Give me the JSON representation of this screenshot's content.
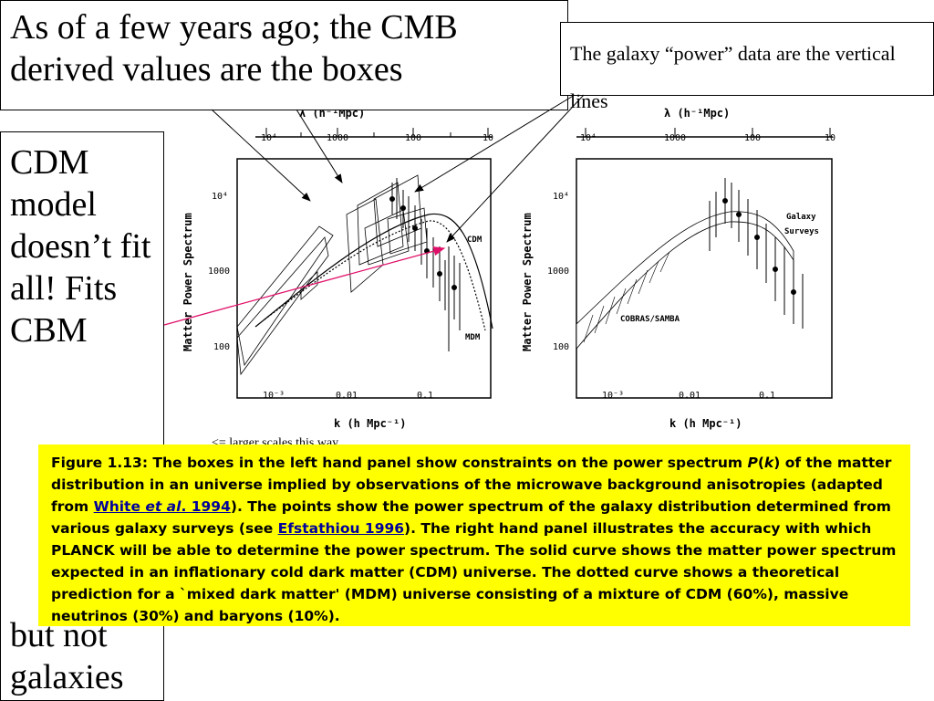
{
  "title_box": {
    "text": "As of a few years ago; the CMB derived values are the boxes"
  },
  "note_box": {
    "text": "The galaxy “power” data are the vertical lines"
  },
  "side_box": {
    "text": "CDM model doesn’t fit all! Fits CBM",
    "bottom_text": "but not galaxies"
  },
  "scale_note": "<= larger scales this way",
  "figure": {
    "left_panel": {
      "top_axis_label": "λ (h⁻¹Mpc)",
      "top_ticks": [
        "10⁴",
        "1000",
        "100",
        "10"
      ],
      "y_label": "Matter Power Spectrum",
      "y_ticks": [
        "10⁴",
        "1000",
        "100"
      ],
      "x_label": "k (h Mpc⁻¹)",
      "x_ticks": [
        "10⁻³",
        "0.01",
        "0.1"
      ],
      "curve_labels": [
        "CDM",
        "MDM"
      ]
    },
    "right_panel": {
      "top_axis_label": "λ (h⁻¹Mpc)",
      "top_ticks": [
        "10⁴",
        "1000",
        "100",
        "10"
      ],
      "y_label": "Matter Power Spectrum",
      "y_ticks": [
        "10⁴",
        "1000",
        "100"
      ],
      "x_label": "k (h Mpc⁻¹)",
      "x_ticks": [
        "10⁻³",
        "0.01",
        "0.1"
      ],
      "annotations": [
        "Galaxy",
        "Surveys",
        "COBRAS/SAMBA"
      ]
    }
  },
  "caption": {
    "part1": "Figure 1.13: The boxes in the left hand panel show constraints on the power spectrum ",
    "p_italic": "P",
    "paren_open": "(",
    "k_italic": "k",
    "part2": ") of the matter distribution in an  universe implied by observations of the microwave background anisotropies (adapted from ",
    "link1_text": "White ",
    "link1_italic": "et al",
    "link1_rest": ". 1994",
    "part3": "). The points show the power spectrum of the galaxy distribution determined from various galaxy surveys (see ",
    "link2_text": "Efstathiou 1996",
    "part4": "). The right hand panel illustrates the accuracy with which PLANCK will be able to determine the power spectrum. The solid curve shows the matter power spectrum expected in an inflationary cold dark matter (CDM) universe. The dotted curve shows a theoretical prediction for a `mixed dark matter' (MDM) universe consisting of a mixture of CDM (60%), massive neutrinos (30%) and baryons (10%)."
  }
}
